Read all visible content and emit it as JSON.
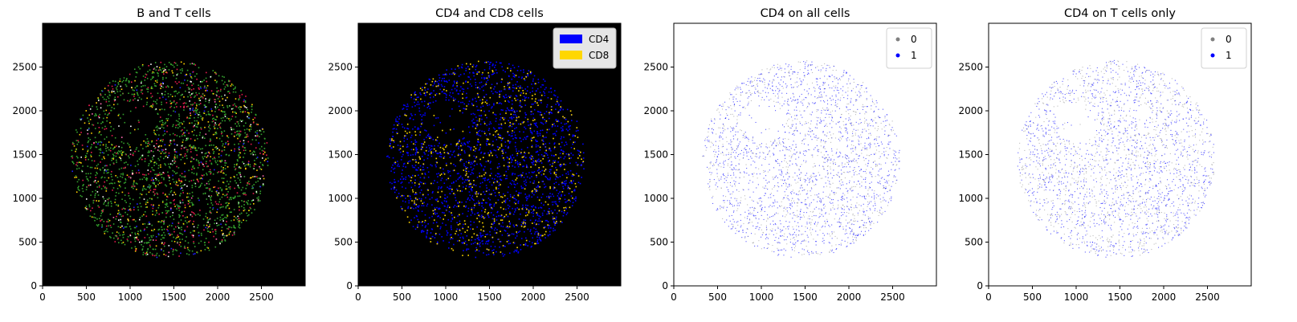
{
  "chart_data": [
    {
      "type": "scatter",
      "title": "B and T cells",
      "background": "#000000",
      "xlim": [
        0,
        3000
      ],
      "ylim": [
        0,
        3000
      ],
      "xticks": [
        "0",
        "500",
        "1000",
        "1500",
        "2000",
        "2500"
      ],
      "yticks": [
        "0",
        "500",
        "1000",
        "1500",
        "2000",
        "2500"
      ],
      "tissue": {
        "center_x": 1450,
        "center_y": 1450,
        "radius": 1130
      },
      "series": [
        {
          "color": "#33a02c",
          "share": 0.62
        },
        {
          "color": "#e31a4c",
          "share": 0.16
        },
        {
          "color": "#ffd000",
          "share": 0.12
        },
        {
          "color": "#ffffff",
          "share": 0.05
        },
        {
          "color": "#1f1fff",
          "share": 0.03
        },
        {
          "color": "#ff69b4",
          "share": 0.02
        }
      ],
      "legend": null
    },
    {
      "type": "scatter",
      "title": "CD4 and CD8 cells",
      "background": "#000000",
      "xlim": [
        0,
        3000
      ],
      "ylim": [
        0,
        3000
      ],
      "xticks": [
        "0",
        "500",
        "1000",
        "1500",
        "2000",
        "2500"
      ],
      "yticks": [
        "0",
        "500",
        "1000",
        "1500",
        "2000",
        "2500"
      ],
      "tissue": {
        "center_x": 1450,
        "center_y": 1450,
        "radius": 1130
      },
      "series": [
        {
          "name": "CD4",
          "color": "#0000ff",
          "share": 0.75
        },
        {
          "name": "CD8",
          "color": "#ffd700",
          "share": 0.25
        }
      ],
      "legend": {
        "placement": "top-right",
        "style": "patch",
        "entries": [
          "CD4",
          "CD8"
        ]
      }
    },
    {
      "type": "scatter",
      "title": "CD4 on all cells",
      "background": "#ffffff",
      "xlim": [
        0,
        3000
      ],
      "ylim": [
        0,
        3000
      ],
      "xticks": [
        "0",
        "500",
        "1000",
        "1500",
        "2000",
        "2500"
      ],
      "yticks": [
        "0",
        "500",
        "1000",
        "1500",
        "2000",
        "2500"
      ],
      "tissue": {
        "center_x": 1450,
        "center_y": 1450,
        "radius": 1130
      },
      "series": [
        {
          "name": "0",
          "color": "#a0a0a0",
          "share": 0.35
        },
        {
          "name": "1",
          "color": "#1a1aff",
          "share": 0.65
        }
      ],
      "legend": {
        "placement": "top-right",
        "style": "marker",
        "entries": [
          "0",
          "1"
        ]
      }
    },
    {
      "type": "scatter",
      "title": "CD4 on T cells only",
      "background": "#ffffff",
      "xlim": [
        0,
        3000
      ],
      "ylim": [
        0,
        3000
      ],
      "xticks": [
        "0",
        "500",
        "1000",
        "1500",
        "2000",
        "2500"
      ],
      "yticks": [
        "0",
        "500",
        "1000",
        "1500",
        "2000",
        "2500"
      ],
      "tissue": {
        "center_x": 1450,
        "center_y": 1450,
        "radius": 1130
      },
      "series": [
        {
          "name": "0",
          "color": "#a0a0a0",
          "share": 0.4
        },
        {
          "name": "1",
          "color": "#1a1aff",
          "share": 0.6
        }
      ],
      "legend": {
        "placement": "top-right",
        "style": "marker",
        "entries": [
          "0",
          "1"
        ]
      }
    }
  ]
}
